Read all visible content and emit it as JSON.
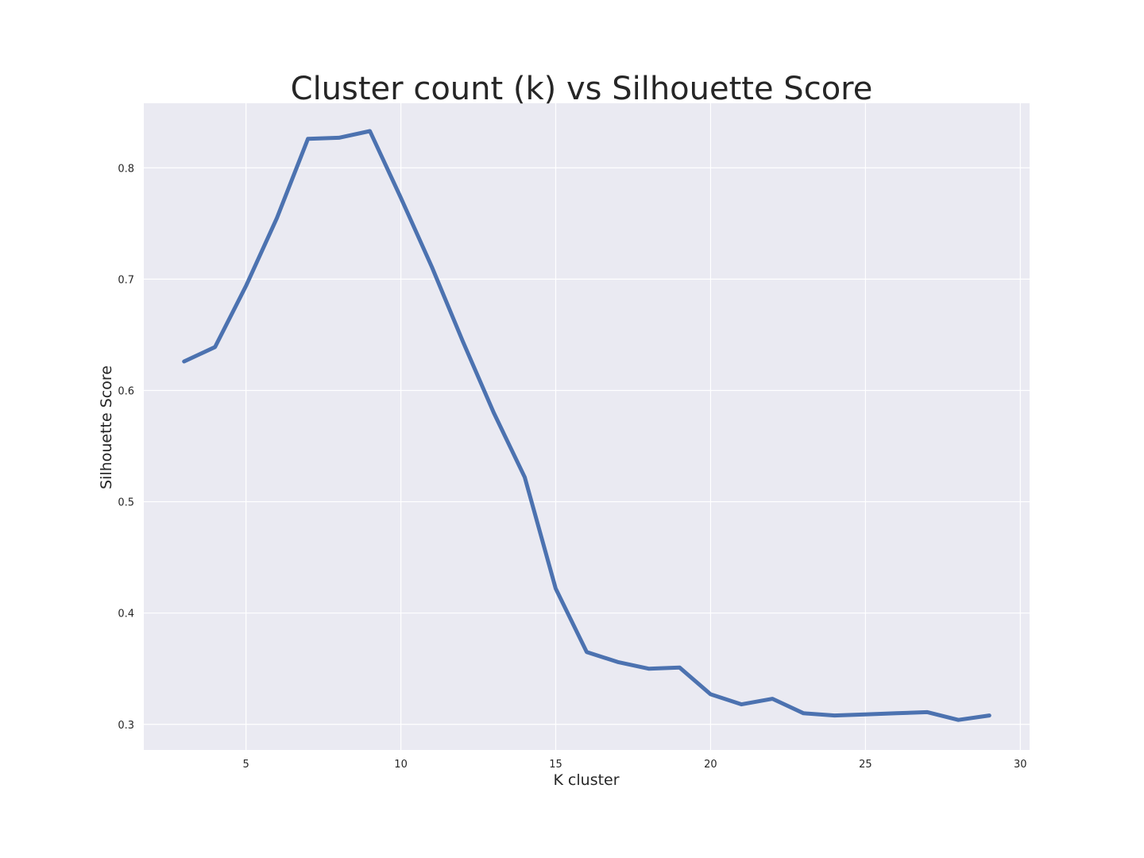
{
  "chart_data": {
    "type": "line",
    "title": "Cluster count (k) vs Silhouette Score",
    "xlabel": "K cluster",
    "ylabel": "Silhouette Score",
    "xlim": [
      1.7,
      30.3
    ],
    "ylim": [
      0.277,
      0.858
    ],
    "xticks": [
      5,
      10,
      15,
      20,
      25,
      30
    ],
    "xtick_labels": [
      "5",
      "10",
      "15",
      "20",
      "25",
      "30"
    ],
    "yticks": [
      0.3,
      0.4,
      0.5,
      0.6,
      0.7,
      0.8
    ],
    "ytick_labels": [
      "0.3",
      "0.4",
      "0.5",
      "0.6",
      "0.7",
      "0.8"
    ],
    "grid": true,
    "legend": "none",
    "colors": {
      "line": "#4c72b0",
      "plot_background": "#eaeaf2",
      "grid": "#ffffff",
      "text": "#262626"
    },
    "series": [
      {
        "x": [
          3,
          4,
          5,
          6,
          7,
          8,
          9,
          10,
          11,
          12,
          13,
          14,
          15,
          16,
          17,
          18,
          19,
          20,
          21,
          22,
          23,
          24,
          25,
          26,
          27,
          28,
          29
        ],
        "values": [
          0.626,
          0.639,
          0.694,
          0.755,
          0.826,
          0.827,
          0.833,
          0.773,
          0.711,
          0.644,
          0.58,
          0.522,
          0.422,
          0.365,
          0.356,
          0.35,
          0.351,
          0.327,
          0.318,
          0.323,
          0.31,
          0.308,
          0.309,
          0.31,
          0.311,
          0.304,
          0.308
        ]
      }
    ]
  }
}
